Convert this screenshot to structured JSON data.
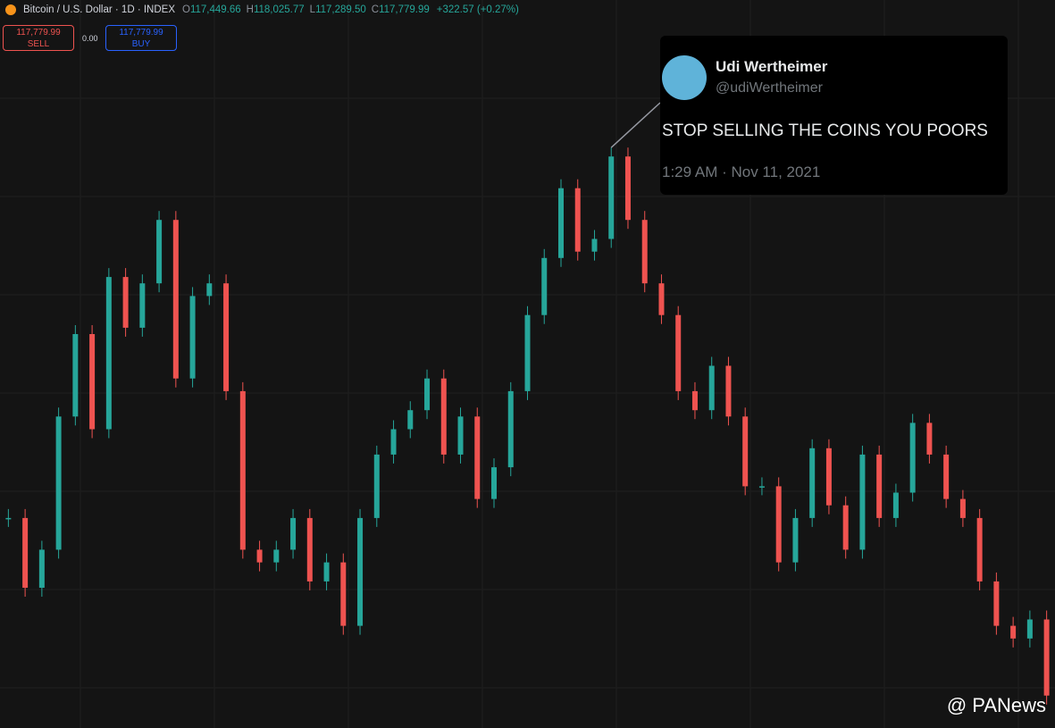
{
  "header": {
    "symbol": "Bitcoin / U.S. Dollar · 1D · INDEX",
    "ohlc": [
      {
        "label": "O",
        "value": "117,449.66"
      },
      {
        "label": "H",
        "value": "118,025.77"
      },
      {
        "label": "L",
        "value": "117,289.50"
      },
      {
        "label": "C",
        "value": "117,779.99"
      }
    ],
    "change": "+322.57 (+0.27%)"
  },
  "trade": {
    "sell_price": "117,779.99",
    "sell_label": "SELL",
    "spread": "0.00",
    "buy_price": "117,779.99",
    "buy_label": "BUY"
  },
  "tweet": {
    "name": "Udi Wertheimer",
    "handle": "@udiWertheimer",
    "text": "STOP SELLING THE COINS YOU POORS",
    "time": "1:29 AM · Nov 11, 2021"
  },
  "watermark": "@ PANews",
  "chart_data": {
    "type": "candlestick",
    "ylim": [
      0,
      100
    ],
    "up_color": "#26a69a",
    "down_color": "#ef5350",
    "grid": true,
    "values": [
      31,
      20,
      26,
      47,
      60,
      45,
      69,
      61,
      68,
      78,
      53,
      66,
      68,
      51,
      26,
      24,
      26,
      31,
      21,
      24,
      14,
      31,
      41,
      45,
      48,
      53,
      41,
      47,
      34,
      39,
      51,
      63,
      72,
      83,
      73,
      75,
      88,
      78,
      68,
      63,
      51,
      48,
      55,
      47,
      36,
      36,
      24,
      31,
      42,
      33,
      26,
      41,
      31,
      35,
      46,
      41,
      34,
      31,
      21,
      14,
      12,
      15,
      3
    ]
  }
}
